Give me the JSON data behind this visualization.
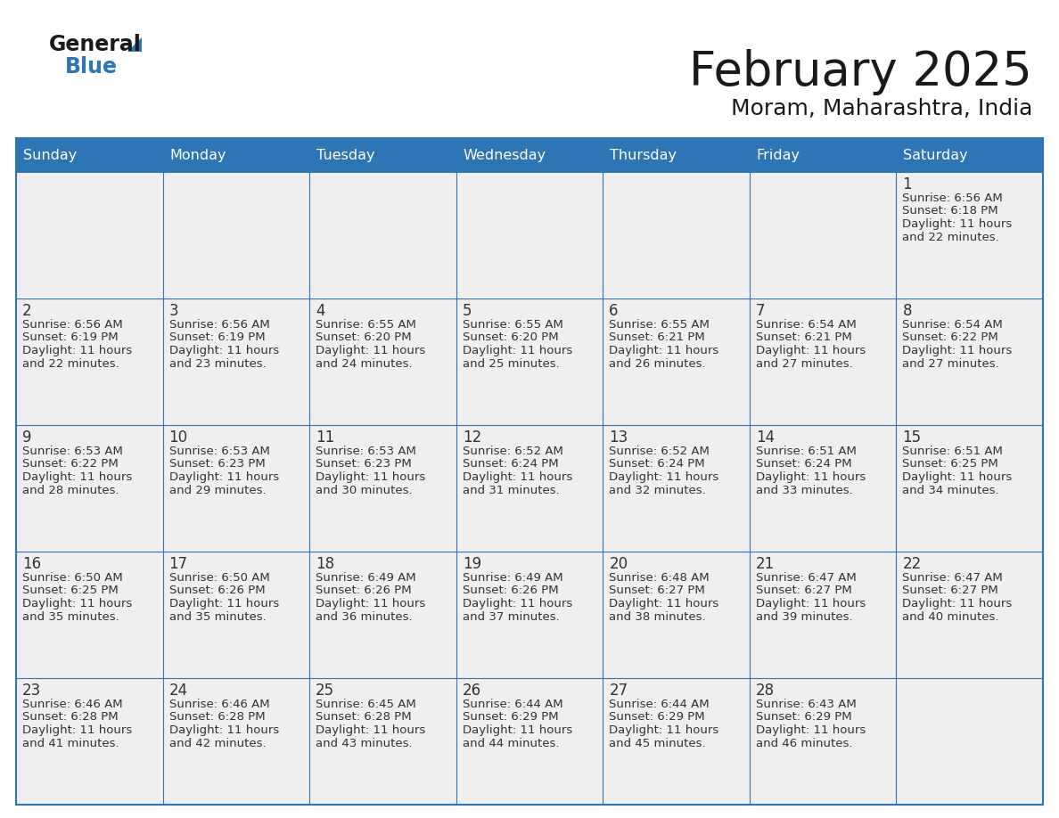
{
  "title": "February 2025",
  "subtitle": "Moram, Maharashtra, India",
  "header_bg": "#2e75b6",
  "header_text_color": "#ffffff",
  "cell_bg": "#efefef",
  "cell_bg_white": "#ffffff",
  "border_color": "#2e75b6",
  "text_color": "#333333",
  "day_number_color": "#333333",
  "day_headers": [
    "Sunday",
    "Monday",
    "Tuesday",
    "Wednesday",
    "Thursday",
    "Friday",
    "Saturday"
  ],
  "logo_general_color": "#1a1a1a",
  "logo_blue_color": "#2e75b6",
  "calendar": [
    [
      null,
      null,
      null,
      null,
      null,
      null,
      {
        "day": 1,
        "sunrise": "6:56 AM",
        "sunset": "6:18 PM",
        "daylight_l1": "Daylight: 11 hours",
        "daylight_l2": "and 22 minutes."
      }
    ],
    [
      {
        "day": 2,
        "sunrise": "6:56 AM",
        "sunset": "6:19 PM",
        "daylight_l1": "Daylight: 11 hours",
        "daylight_l2": "and 22 minutes."
      },
      {
        "day": 3,
        "sunrise": "6:56 AM",
        "sunset": "6:19 PM",
        "daylight_l1": "Daylight: 11 hours",
        "daylight_l2": "and 23 minutes."
      },
      {
        "day": 4,
        "sunrise": "6:55 AM",
        "sunset": "6:20 PM",
        "daylight_l1": "Daylight: 11 hours",
        "daylight_l2": "and 24 minutes."
      },
      {
        "day": 5,
        "sunrise": "6:55 AM",
        "sunset": "6:20 PM",
        "daylight_l1": "Daylight: 11 hours",
        "daylight_l2": "and 25 minutes."
      },
      {
        "day": 6,
        "sunrise": "6:55 AM",
        "sunset": "6:21 PM",
        "daylight_l1": "Daylight: 11 hours",
        "daylight_l2": "and 26 minutes."
      },
      {
        "day": 7,
        "sunrise": "6:54 AM",
        "sunset": "6:21 PM",
        "daylight_l1": "Daylight: 11 hours",
        "daylight_l2": "and 27 minutes."
      },
      {
        "day": 8,
        "sunrise": "6:54 AM",
        "sunset": "6:22 PM",
        "daylight_l1": "Daylight: 11 hours",
        "daylight_l2": "and 27 minutes."
      }
    ],
    [
      {
        "day": 9,
        "sunrise": "6:53 AM",
        "sunset": "6:22 PM",
        "daylight_l1": "Daylight: 11 hours",
        "daylight_l2": "and 28 minutes."
      },
      {
        "day": 10,
        "sunrise": "6:53 AM",
        "sunset": "6:23 PM",
        "daylight_l1": "Daylight: 11 hours",
        "daylight_l2": "and 29 minutes."
      },
      {
        "day": 11,
        "sunrise": "6:53 AM",
        "sunset": "6:23 PM",
        "daylight_l1": "Daylight: 11 hours",
        "daylight_l2": "and 30 minutes."
      },
      {
        "day": 12,
        "sunrise": "6:52 AM",
        "sunset": "6:24 PM",
        "daylight_l1": "Daylight: 11 hours",
        "daylight_l2": "and 31 minutes."
      },
      {
        "day": 13,
        "sunrise": "6:52 AM",
        "sunset": "6:24 PM",
        "daylight_l1": "Daylight: 11 hours",
        "daylight_l2": "and 32 minutes."
      },
      {
        "day": 14,
        "sunrise": "6:51 AM",
        "sunset": "6:24 PM",
        "daylight_l1": "Daylight: 11 hours",
        "daylight_l2": "and 33 minutes."
      },
      {
        "day": 15,
        "sunrise": "6:51 AM",
        "sunset": "6:25 PM",
        "daylight_l1": "Daylight: 11 hours",
        "daylight_l2": "and 34 minutes."
      }
    ],
    [
      {
        "day": 16,
        "sunrise": "6:50 AM",
        "sunset": "6:25 PM",
        "daylight_l1": "Daylight: 11 hours",
        "daylight_l2": "and 35 minutes."
      },
      {
        "day": 17,
        "sunrise": "6:50 AM",
        "sunset": "6:26 PM",
        "daylight_l1": "Daylight: 11 hours",
        "daylight_l2": "and 35 minutes."
      },
      {
        "day": 18,
        "sunrise": "6:49 AM",
        "sunset": "6:26 PM",
        "daylight_l1": "Daylight: 11 hours",
        "daylight_l2": "and 36 minutes."
      },
      {
        "day": 19,
        "sunrise": "6:49 AM",
        "sunset": "6:26 PM",
        "daylight_l1": "Daylight: 11 hours",
        "daylight_l2": "and 37 minutes."
      },
      {
        "day": 20,
        "sunrise": "6:48 AM",
        "sunset": "6:27 PM",
        "daylight_l1": "Daylight: 11 hours",
        "daylight_l2": "and 38 minutes."
      },
      {
        "day": 21,
        "sunrise": "6:47 AM",
        "sunset": "6:27 PM",
        "daylight_l1": "Daylight: 11 hours",
        "daylight_l2": "and 39 minutes."
      },
      {
        "day": 22,
        "sunrise": "6:47 AM",
        "sunset": "6:27 PM",
        "daylight_l1": "Daylight: 11 hours",
        "daylight_l2": "and 40 minutes."
      }
    ],
    [
      {
        "day": 23,
        "sunrise": "6:46 AM",
        "sunset": "6:28 PM",
        "daylight_l1": "Daylight: 11 hours",
        "daylight_l2": "and 41 minutes."
      },
      {
        "day": 24,
        "sunrise": "6:46 AM",
        "sunset": "6:28 PM",
        "daylight_l1": "Daylight: 11 hours",
        "daylight_l2": "and 42 minutes."
      },
      {
        "day": 25,
        "sunrise": "6:45 AM",
        "sunset": "6:28 PM",
        "daylight_l1": "Daylight: 11 hours",
        "daylight_l2": "and 43 minutes."
      },
      {
        "day": 26,
        "sunrise": "6:44 AM",
        "sunset": "6:29 PM",
        "daylight_l1": "Daylight: 11 hours",
        "daylight_l2": "and 44 minutes."
      },
      {
        "day": 27,
        "sunrise": "6:44 AM",
        "sunset": "6:29 PM",
        "daylight_l1": "Daylight: 11 hours",
        "daylight_l2": "and 45 minutes."
      },
      {
        "day": 28,
        "sunrise": "6:43 AM",
        "sunset": "6:29 PM",
        "daylight_l1": "Daylight: 11 hours",
        "daylight_l2": "and 46 minutes."
      },
      null
    ]
  ]
}
